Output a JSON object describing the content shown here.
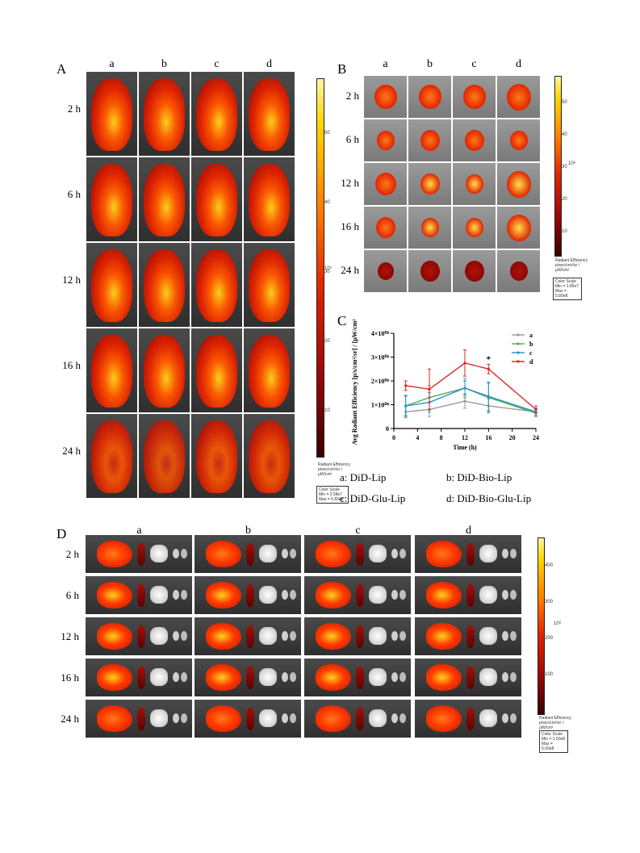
{
  "panelA": {
    "label": "A",
    "columns": [
      "a",
      "b",
      "c",
      "d"
    ],
    "rows": [
      "2 h",
      "6 h",
      "12 h",
      "16 h",
      "24 h"
    ],
    "scale_ticks": [
      "50",
      "40",
      "30",
      "20",
      "10"
    ],
    "scale_exp": "10⁹",
    "radiant_title": "Radiant Efficiency",
    "radiant_units": "p/sec/cm²/sr / μW/cm²",
    "color_scale": [
      "Color Scale",
      "Min = 2.58e7",
      "Max = 5.83e8"
    ]
  },
  "panelB": {
    "label": "B",
    "columns": [
      "a",
      "b",
      "c",
      "d"
    ],
    "rows": [
      "2 h",
      "6 h",
      "12 h",
      "16 h",
      "24 h"
    ],
    "scale_ticks": [
      "50",
      "40",
      "30",
      "20",
      "10"
    ],
    "scale_exp": "10⁸",
    "radiant_title": "Radiant Efficiency",
    "radiant_units": "p/sec/cm²/sr / μW/cm²",
    "color_scale": [
      "Color Scale",
      "Min = 1.86e7",
      "Max = 5.80e8"
    ]
  },
  "panelC": {
    "label": "C",
    "chart_data": {
      "type": "line",
      "x": [
        2,
        6,
        12,
        16,
        24
      ],
      "xlabel": "Time (h)",
      "ylabel": "Avg Radiant Efficiency [p/s/cm²/sr] / [μW/cm²]",
      "xticks": [
        "0",
        "4",
        "8",
        "12",
        "16",
        "20",
        "24"
      ],
      "yticks": [
        "0",
        "1×10⁰⁸",
        "2×10⁰⁸",
        "3×10⁰⁸",
        "4×10⁰⁸"
      ],
      "xlim": [
        0,
        24
      ],
      "ylim": [
        0,
        400000000
      ],
      "annotation": "*",
      "series": [
        {
          "name": "a",
          "color": "#9a9a9a",
          "values": [
            70000000,
            80000000,
            115000000,
            95000000,
            70000000
          ],
          "err": [
            25000000,
            30000000,
            30000000,
            30000000,
            15000000
          ]
        },
        {
          "name": "b",
          "color": "#4caf50",
          "values": [
            95000000,
            130000000,
            170000000,
            130000000,
            65000000
          ],
          "err": [
            40000000,
            50000000,
            40000000,
            60000000,
            15000000
          ]
        },
        {
          "name": "c",
          "color": "#2a8fd0",
          "values": [
            95000000,
            110000000,
            170000000,
            135000000,
            70000000
          ],
          "err": [
            45000000,
            40000000,
            30000000,
            60000000,
            15000000
          ]
        },
        {
          "name": "d",
          "color": "#e02424",
          "values": [
            180000000,
            165000000,
            275000000,
            250000000,
            80000000
          ],
          "err": [
            20000000,
            85000000,
            55000000,
            20000000,
            15000000
          ]
        }
      ]
    }
  },
  "legend": {
    "a": "a: DiD-Lip",
    "b": "b: DiD-Bio-Lip",
    "c": "c: DiD-Glu-Lip",
    "d": "d: DiD-Bio-Glu-Lip"
  },
  "panelD": {
    "label": "D",
    "columns": [
      "a",
      "b",
      "c",
      "d"
    ],
    "rows": [
      "2 h",
      "6 h",
      "12 h",
      "16 h",
      "24 h"
    ],
    "scale_ticks": [
      "400",
      "300",
      "200",
      "100"
    ],
    "scale_exp": "10⁸",
    "radiant_title": "Radiant Efficiency",
    "radiant_units": "p/sec/cm²/sr / μW/cm²",
    "color_scale": [
      "Color Scale",
      "Min = 2.50e8",
      "Max = 5.00e8"
    ]
  }
}
